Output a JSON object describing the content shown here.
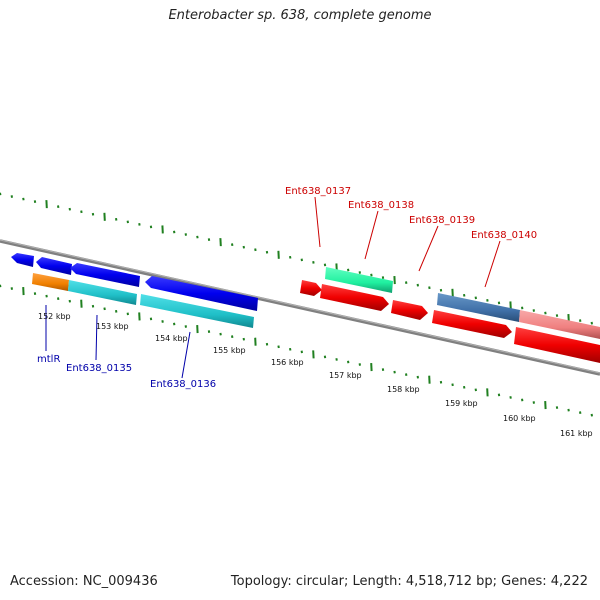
{
  "title": "Enterobacter sp. 638, complete genome",
  "accession": "Accession: NC_009436",
  "summary": "Topology: circular; Length: 4,518,712 bp; Genes: 4,222",
  "ticks": [
    "152 kbp",
    "153 kbp",
    "154 kbp",
    "155 kbp",
    "156 kbp",
    "157 kbp",
    "158 kbp",
    "159 kbp",
    "160 kbp",
    "161 kbp"
  ],
  "gene_labels": {
    "ent0137": "Ent638_0137",
    "ent0138": "Ent638_0138",
    "ent0139": "Ent638_0139",
    "ent0140": "Ent638_0140",
    "mtlr": "mtlR",
    "ent0135": "Ent638_0135",
    "ent0136": "Ent638_0136"
  },
  "colors": {
    "cds_forward": "#ff0000",
    "cds_reverse": "#0000ee",
    "cds_teal": "#20c0c8",
    "cds_orange": "#f08000",
    "cds_green": "#20f0a0",
    "cds_steelblue": "#4070a8",
    "cds_pink": "#f08080",
    "backbone": "#808080",
    "ticks": "#208020"
  }
}
